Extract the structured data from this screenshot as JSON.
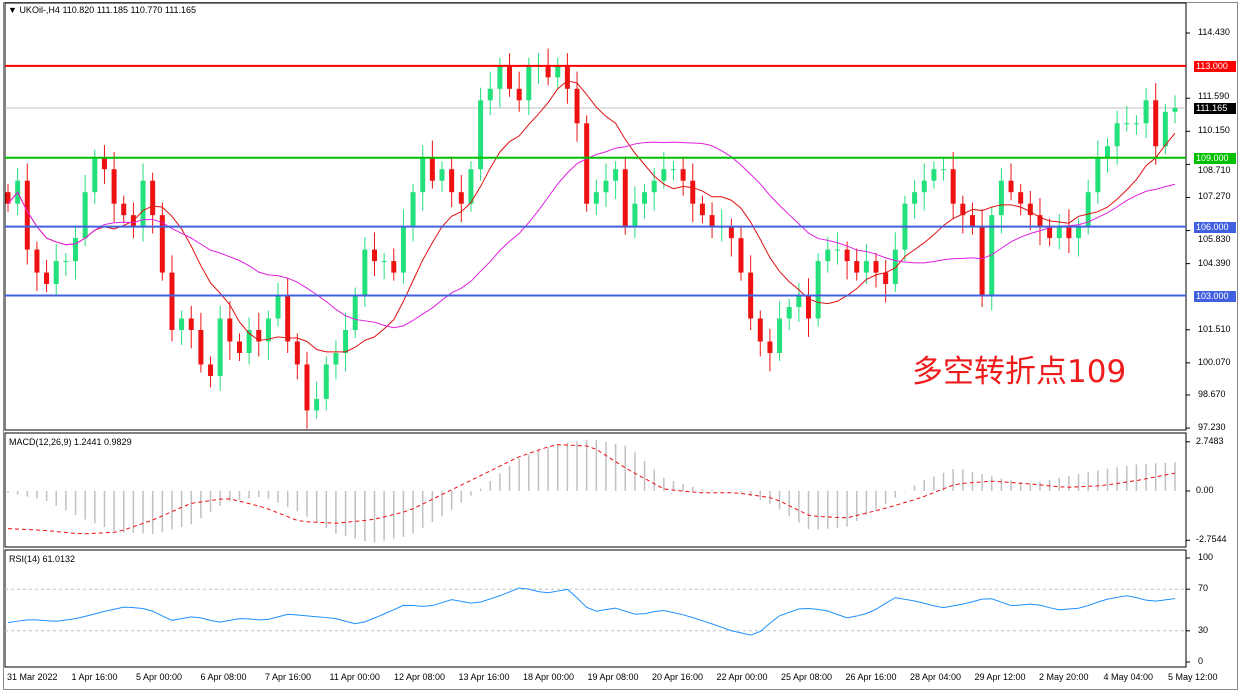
{
  "header": {
    "symbol_line": "UKOil-,H4  110.820 111.185 110.770 111.165"
  },
  "annotation": "多空转折点109",
  "price_axis": {
    "ticks": [
      "114.430",
      "111.590",
      "110.150",
      "108.710",
      "107.270",
      "105.830",
      "104.390",
      "101.510",
      "100.070",
      "98.670",
      "97.230"
    ],
    "tick_values": [
      114.43,
      111.59,
      110.15,
      108.71,
      107.27,
      105.83,
      104.39,
      101.51,
      100.07,
      98.67,
      97.23
    ],
    "current_price": "111.165"
  },
  "levels": [
    {
      "label": "113.000",
      "value": 113.0,
      "color": "#ff0000"
    },
    {
      "label": "109.000",
      "value": 109.0,
      "color": "#00c000"
    },
    {
      "label": "106.000",
      "value": 106.0,
      "color": "#4060e0"
    },
    {
      "label": "103.000",
      "value": 103.0,
      "color": "#4060e0"
    }
  ],
  "colors": {
    "up": "#22e07a",
    "down": "#ee1111",
    "ma_fast": "#e01010",
    "ma_slow": "#e020e0",
    "macd_hist": "#c0c0c0",
    "macd_signal": "#ee1111",
    "rsi": "#1e90ff"
  },
  "time_axis": [
    "31 Mar 2022",
    "1 Apr 16:00",
    "5 Apr 00:00",
    "6 Apr 08:00",
    "7 Apr 16:00",
    "11 Apr 00:00",
    "12 Apr 08:00",
    "13 Apr 16:00",
    "18 Apr 00:00",
    "19 Apr 08:00",
    "20 Apr 16:00",
    "22 Apr 00:00",
    "25 Apr 08:00",
    "26 Apr 16:00",
    "28 Apr 04:00",
    "29 Apr 12:00",
    "2 May 20:00",
    "4 May 04:00",
    "5 May 12:00"
  ],
  "macd": {
    "label": "MACD(12,26,9) 1.2441 0.9829",
    "ticks": [
      "2.7483",
      "0.00",
      "-2.7544"
    ],
    "main": [
      -0.1,
      -0.5,
      -1.5,
      -2.3,
      -2.4,
      -1.9,
      -0.6,
      -0.3,
      -1.2,
      -2.4,
      -2.9,
      -2.5,
      -1.3,
      0.2,
      1.8,
      2.6,
      2.9,
      2.5,
      0.7,
      0.1,
      0.0,
      -0.8,
      -2.2,
      -2.0,
      -0.8,
      0.5,
      1.3,
      0.8,
      0.4,
      0.8,
      1.2,
      1.5,
      1.6
    ],
    "signal": [
      -2.1,
      -2.2,
      -2.4,
      -2.3,
      -1.6,
      -0.7,
      -0.4,
      -0.9,
      -1.7,
      -1.8,
      -1.6,
      -1.1,
      -0.1,
      0.9,
      1.9,
      2.6,
      2.5,
      1.2,
      0.1,
      -0.1,
      -0.1,
      -0.4,
      -1.4,
      -1.5,
      -1.0,
      -0.4,
      0.4,
      0.55,
      0.4,
      0.2,
      0.3,
      0.6,
      1.0
    ]
  },
  "rsi": {
    "label": "RSI(14) 61.0132",
    "ticks": [
      "100",
      "70",
      "30",
      "0"
    ],
    "values": [
      38,
      41,
      39,
      42,
      48,
      53,
      51,
      40,
      44,
      38,
      42,
      40,
      46,
      44,
      42,
      36,
      45,
      55,
      53,
      60,
      56,
      63,
      72,
      66,
      70,
      48,
      52,
      45,
      50,
      45,
      38,
      30,
      25,
      44,
      52,
      50,
      42,
      48,
      62,
      58,
      52,
      56,
      62,
      54,
      56,
      50,
      52,
      60,
      64,
      58,
      61
    ]
  },
  "chart_data": {
    "type": "candlestick",
    "title": "UKOil-,H4",
    "ylim": [
      97.23,
      115.2
    ],
    "closes": [
      107,
      108,
      105,
      104,
      103.5,
      104.5,
      104.5,
      105.5,
      107.5,
      109,
      108.5,
      107,
      106.5,
      106,
      108,
      106.5,
      104,
      101.5,
      102,
      101.5,
      100,
      99.5,
      102,
      101,
      100.5,
      101.5,
      101,
      102,
      103,
      101,
      100,
      98,
      98.5,
      100,
      100.5,
      101.5,
      103,
      105,
      104.5,
      104.5,
      104,
      106,
      107.5,
      109,
      108,
      108.5,
      107.5,
      107,
      108.5,
      111.5,
      112,
      113,
      112,
      111.5,
      113,
      113,
      112.5,
      113,
      112,
      110.5,
      107,
      107.5,
      108,
      108.5,
      106,
      107,
      107.5,
      108,
      108.5,
      108.5,
      108,
      107,
      106.5,
      106,
      106,
      105.5,
      104,
      102,
      101,
      100.5,
      102,
      102.5,
      103,
      102,
      104.5,
      105,
      105,
      104.5,
      104,
      104.5,
      104,
      103.5,
      105,
      107,
      107.5,
      108,
      108.5,
      108.5,
      107,
      106.5,
      106,
      103,
      106.5,
      108,
      107.5,
      107,
      106.5,
      106,
      105.5,
      106,
      105.5,
      106,
      107.5,
      109,
      109.5,
      110.5,
      110.5,
      110.5,
      111.5,
      109.5,
      111,
      111.165
    ]
  }
}
